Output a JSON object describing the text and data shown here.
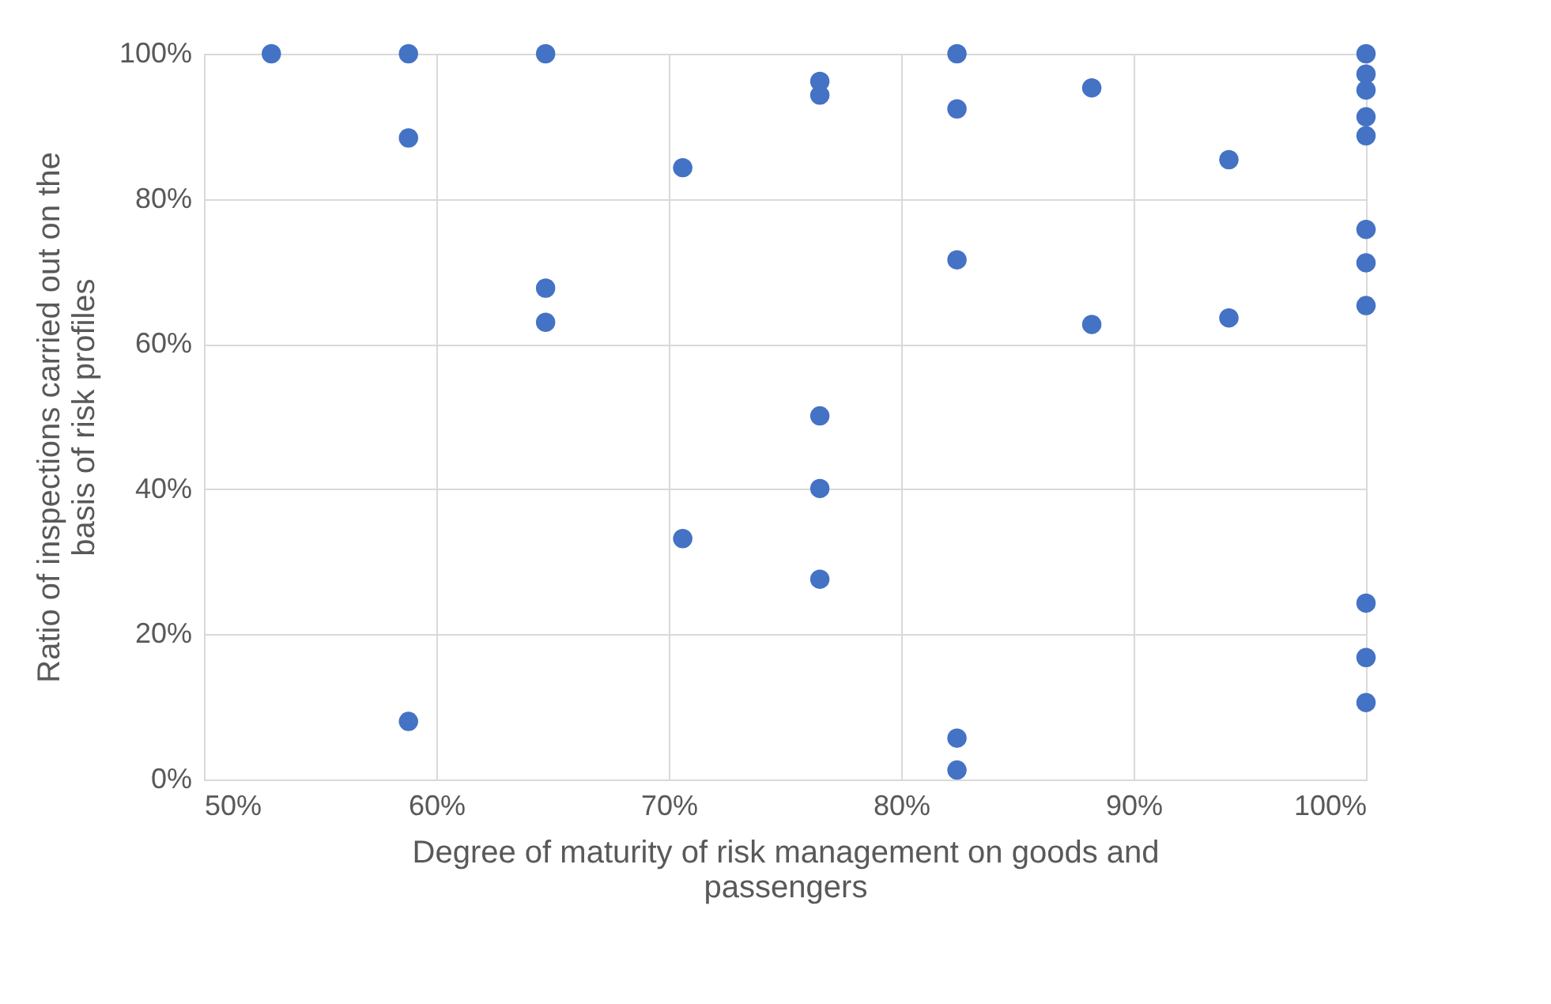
{
  "chart_data": {
    "type": "scatter",
    "xlabel": "Degree of maturity of risk management on goods and passengers",
    "ylabel": "Ratio of inspections carried out on the basis of risk profiles",
    "x": [
      52.9,
      58.8,
      58.8,
      58.8,
      64.7,
      64.7,
      64.7,
      70.6,
      70.6,
      76.5,
      76.5,
      76.5,
      76.5,
      76.5,
      82.4,
      82.4,
      82.4,
      82.4,
      82.4,
      88.2,
      88.2,
      94.1,
      94.1,
      100,
      100,
      100,
      100,
      100,
      100,
      100,
      100,
      100,
      100,
      100
    ],
    "series": [
      {
        "color": "#4472c4",
        "values": [
          100,
          100,
          88.4,
          8,
          100,
          67.7,
          63,
          84.3,
          33.2,
          96.2,
          94.3,
          50.1,
          40.1,
          27.6,
          100,
          92.4,
          71.6,
          5.7,
          1.3,
          95.3,
          62.7,
          85.4,
          63.6,
          100,
          97.2,
          95,
          91.3,
          88.7,
          75.8,
          71.2,
          65.3,
          24.3,
          16.8,
          10.6
        ]
      }
    ],
    "xlim": [
      50,
      100
    ],
    "ylim": [
      0,
      100
    ],
    "xticks": [
      {
        "value": 50,
        "label": "50%"
      },
      {
        "value": 60,
        "label": "60%"
      },
      {
        "value": 70,
        "label": "70%"
      },
      {
        "value": 80,
        "label": "80%"
      },
      {
        "value": 90,
        "label": "90%"
      },
      {
        "value": 100,
        "label": "100%"
      }
    ],
    "yticks": [
      {
        "value": 0,
        "label": "0%"
      },
      {
        "value": 20,
        "label": "20%"
      },
      {
        "value": 40,
        "label": "40%"
      },
      {
        "value": 60,
        "label": "60%"
      },
      {
        "value": 80,
        "label": "80%"
      },
      {
        "value": 100,
        "label": "100%"
      }
    ],
    "grid": true,
    "marker": "circle",
    "legend": false
  }
}
